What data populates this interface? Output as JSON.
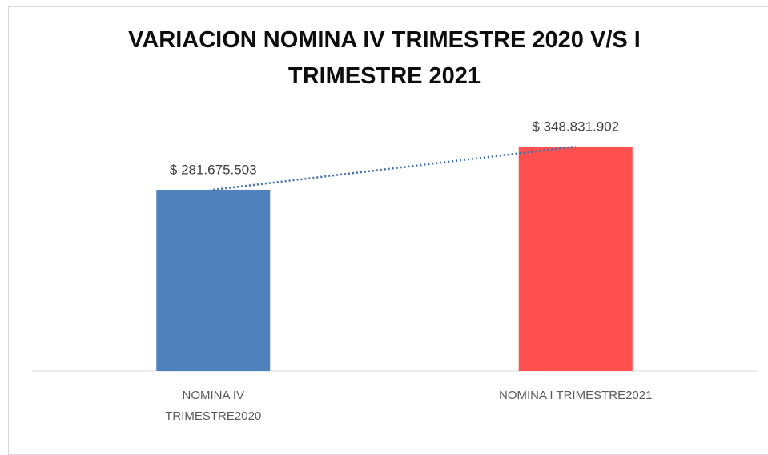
{
  "chart_data": {
    "type": "bar",
    "title": "VARIACION NOMINA IV TRIMESTRE 2020 V/S I TRIMESTRE 2021",
    "categories": [
      "NOMINA IV TRIMESTRE2020",
      "NOMINA I TRIMESTRE2021"
    ],
    "values": [
      281675503,
      348831902
    ],
    "value_labels": [
      "$ 281.675.503",
      "$ 348.831.902"
    ],
    "colors": [
      "#4f81bd",
      "#ff5050"
    ],
    "ylim": [
      0,
      400000000
    ],
    "trendline": {
      "color": "#3f6fa8",
      "style": "dotted"
    }
  }
}
